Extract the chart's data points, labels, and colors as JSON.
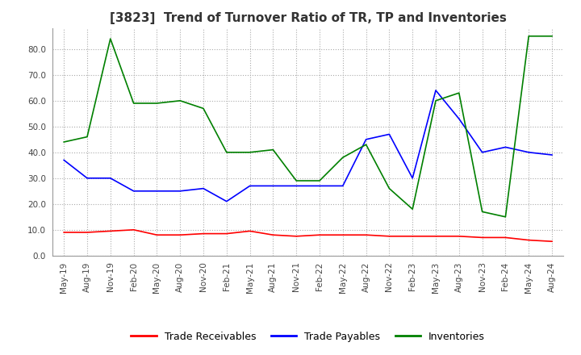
{
  "title": "[3823]  Trend of Turnover Ratio of TR, TP and Inventories",
  "ylim": [
    0,
    88
  ],
  "yticks": [
    0,
    10,
    20,
    30,
    40,
    50,
    60,
    70,
    80
  ],
  "legend_labels": [
    "Trade Receivables",
    "Trade Payables",
    "Inventories"
  ],
  "x_labels": [
    "May-19",
    "Aug-19",
    "Nov-19",
    "Feb-20",
    "May-20",
    "Aug-20",
    "Nov-20",
    "Feb-21",
    "May-21",
    "Aug-21",
    "Nov-21",
    "Feb-22",
    "May-22",
    "Aug-22",
    "Nov-22",
    "Feb-23",
    "May-23",
    "Aug-23",
    "Nov-23",
    "Feb-24",
    "May-24",
    "Aug-24"
  ],
  "trade_receivables": [
    9.0,
    9.0,
    9.5,
    10.0,
    8.0,
    8.0,
    8.5,
    8.5,
    9.5,
    8.0,
    7.5,
    8.0,
    8.0,
    8.0,
    7.5,
    7.5,
    7.5,
    7.5,
    7.0,
    7.0,
    6.0,
    5.5
  ],
  "trade_payables": [
    37,
    30,
    30,
    25,
    25,
    25,
    26,
    21,
    27,
    27,
    27,
    27,
    27,
    45,
    47,
    30,
    64,
    53,
    40,
    42,
    40,
    39
  ],
  "inventories": [
    44,
    46,
    84,
    59,
    59,
    60,
    57,
    40,
    40,
    41,
    29,
    29,
    38,
    43,
    26,
    18,
    60,
    63,
    17,
    15,
    85,
    85
  ],
  "tr_color": "#ff0000",
  "tp_color": "#0000ff",
  "inv_color": "#008000",
  "background_color": "#ffffff",
  "grid_color": "#aaaaaa",
  "title_fontsize": 11,
  "tick_fontsize": 7.5,
  "legend_fontsize": 9
}
